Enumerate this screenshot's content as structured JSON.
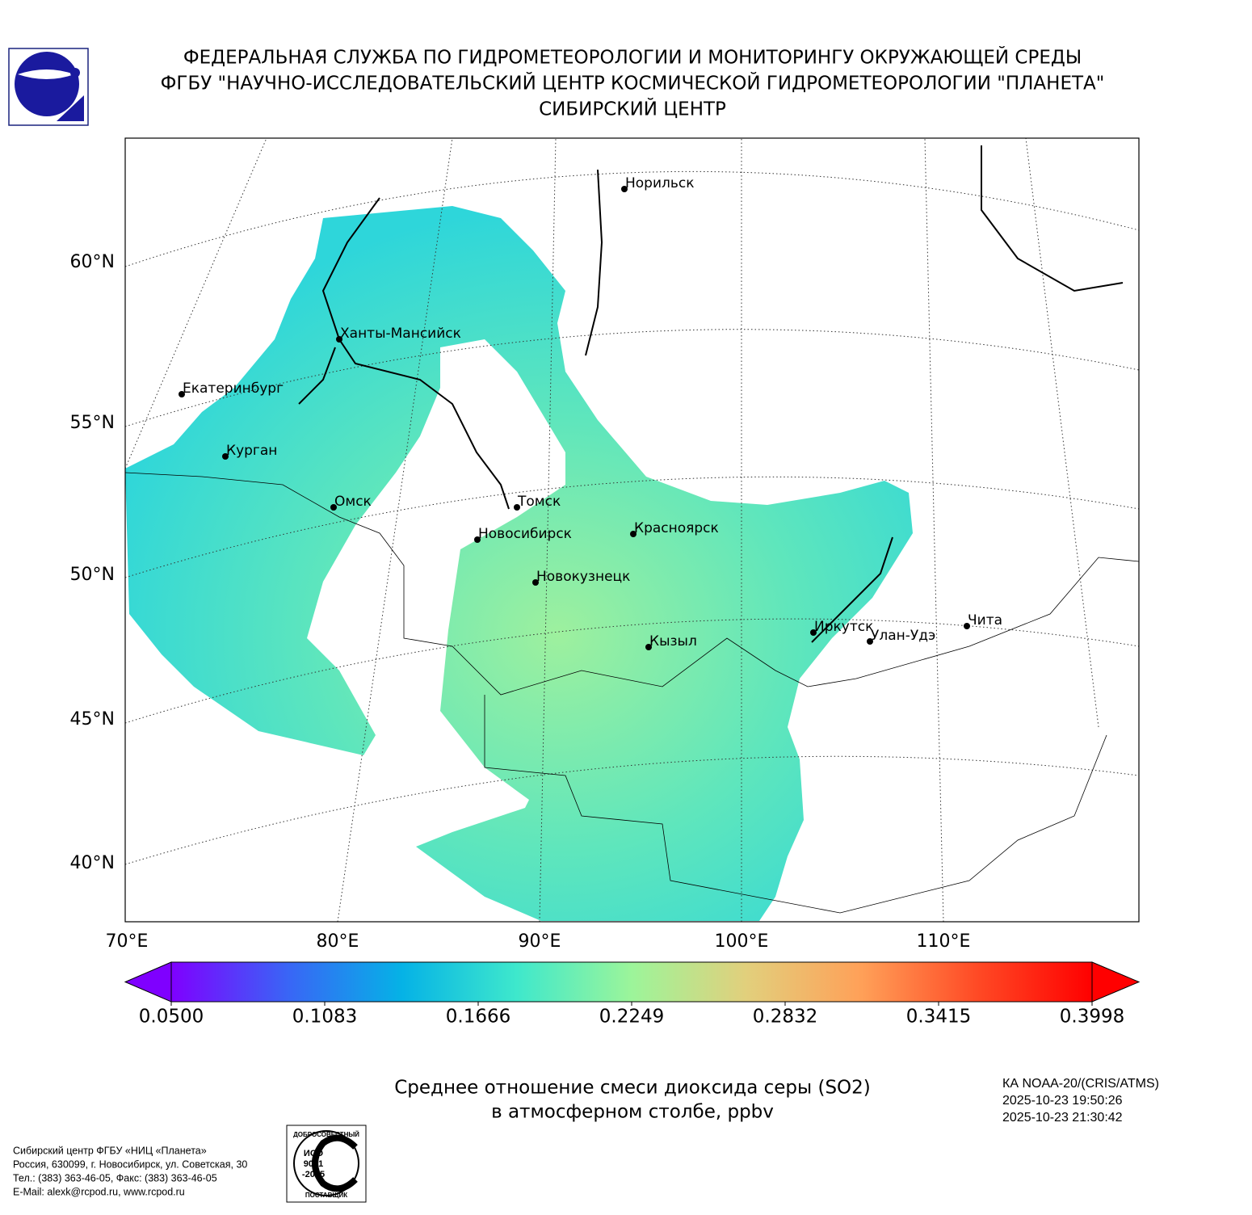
{
  "header": {
    "lines": [
      "ФЕДЕРАЛЬНАЯ СЛУЖБА ПО ГИДРОМЕТЕОРОЛОГИИ И МОНИТОРИНГУ ОКРУЖАЮЩЕЙ СРЕДЫ",
      "ФГБУ \"НАУЧНО-ИССЛЕДОВАТЕЛЬСКИЙ ЦЕНТР КОСМИЧЕСКОЙ ГИДРОМЕТЕОРОЛОГИИ \"ПЛАНЕТА\"",
      "СИБИРСКИЙ ЦЕНТР"
    ]
  },
  "map": {
    "lat_labels": [
      "60°N",
      "55°N",
      "50°N",
      "45°N",
      "40°N"
    ],
    "lon_labels": [
      "70°E",
      "80°E",
      "90°E",
      "100°E",
      "110°E"
    ],
    "cities": [
      "Норильск",
      "Ханты-Мансийск",
      "Екатеринбург",
      "Курган",
      "Омск",
      "Томск",
      "Новосибирск",
      "Красноярск",
      "Новокузнецк",
      "Иркутск",
      "Кызыл",
      "Улан-Удэ",
      "Чита"
    ]
  },
  "colorbar": {
    "lim": [
      0.05,
      0.3998
    ],
    "ticks": [
      {
        "value": 0.05,
        "label": "0.0500"
      },
      {
        "value": 0.1083,
        "label": "0.1083"
      },
      {
        "value": 0.1666,
        "label": "0.1666"
      },
      {
        "value": 0.2249,
        "label": "0.2249"
      },
      {
        "value": 0.2832,
        "label": "0.2832"
      },
      {
        "value": 0.3415,
        "label": "0.3415"
      },
      {
        "value": 0.3998,
        "label": "0.3998"
      }
    ],
    "colors": [
      "#7f00ff",
      "#3a64f6",
      "#05b2e6",
      "#3ee8cc",
      "#9cf59a",
      "#e2cf7c",
      "#ffa058",
      "#ff4a25",
      "#ff0000"
    ]
  },
  "title": [
    "Среднее отношение смеси диоксида серы (SO2)",
    "в атмосферном столбе, ppbv"
  ],
  "satellite": [
    "КА NOAA-20/(CRIS/ATMS)",
    "2025-10-23 19:50:26",
    "2025-10-23 21:30:42"
  ],
  "footer": [
    "Сибирский центр ФГБУ «НИЦ «Планета»",
    "Россия, 630099, г. Новосибирск, ул. Советская, 30",
    "Тел.: (383) 363-46-05, Факс: (383) 363-46-05",
    "E-Mail: alexk@rcpod.ru, www.rcpod.ru"
  ],
  "iso": {
    "top": "ДОБРОСОВЕСТНЫЙ",
    "lines": [
      "ИСО",
      "9001",
      "-2015"
    ],
    "bottom": "ПОСТАВЩИК"
  }
}
